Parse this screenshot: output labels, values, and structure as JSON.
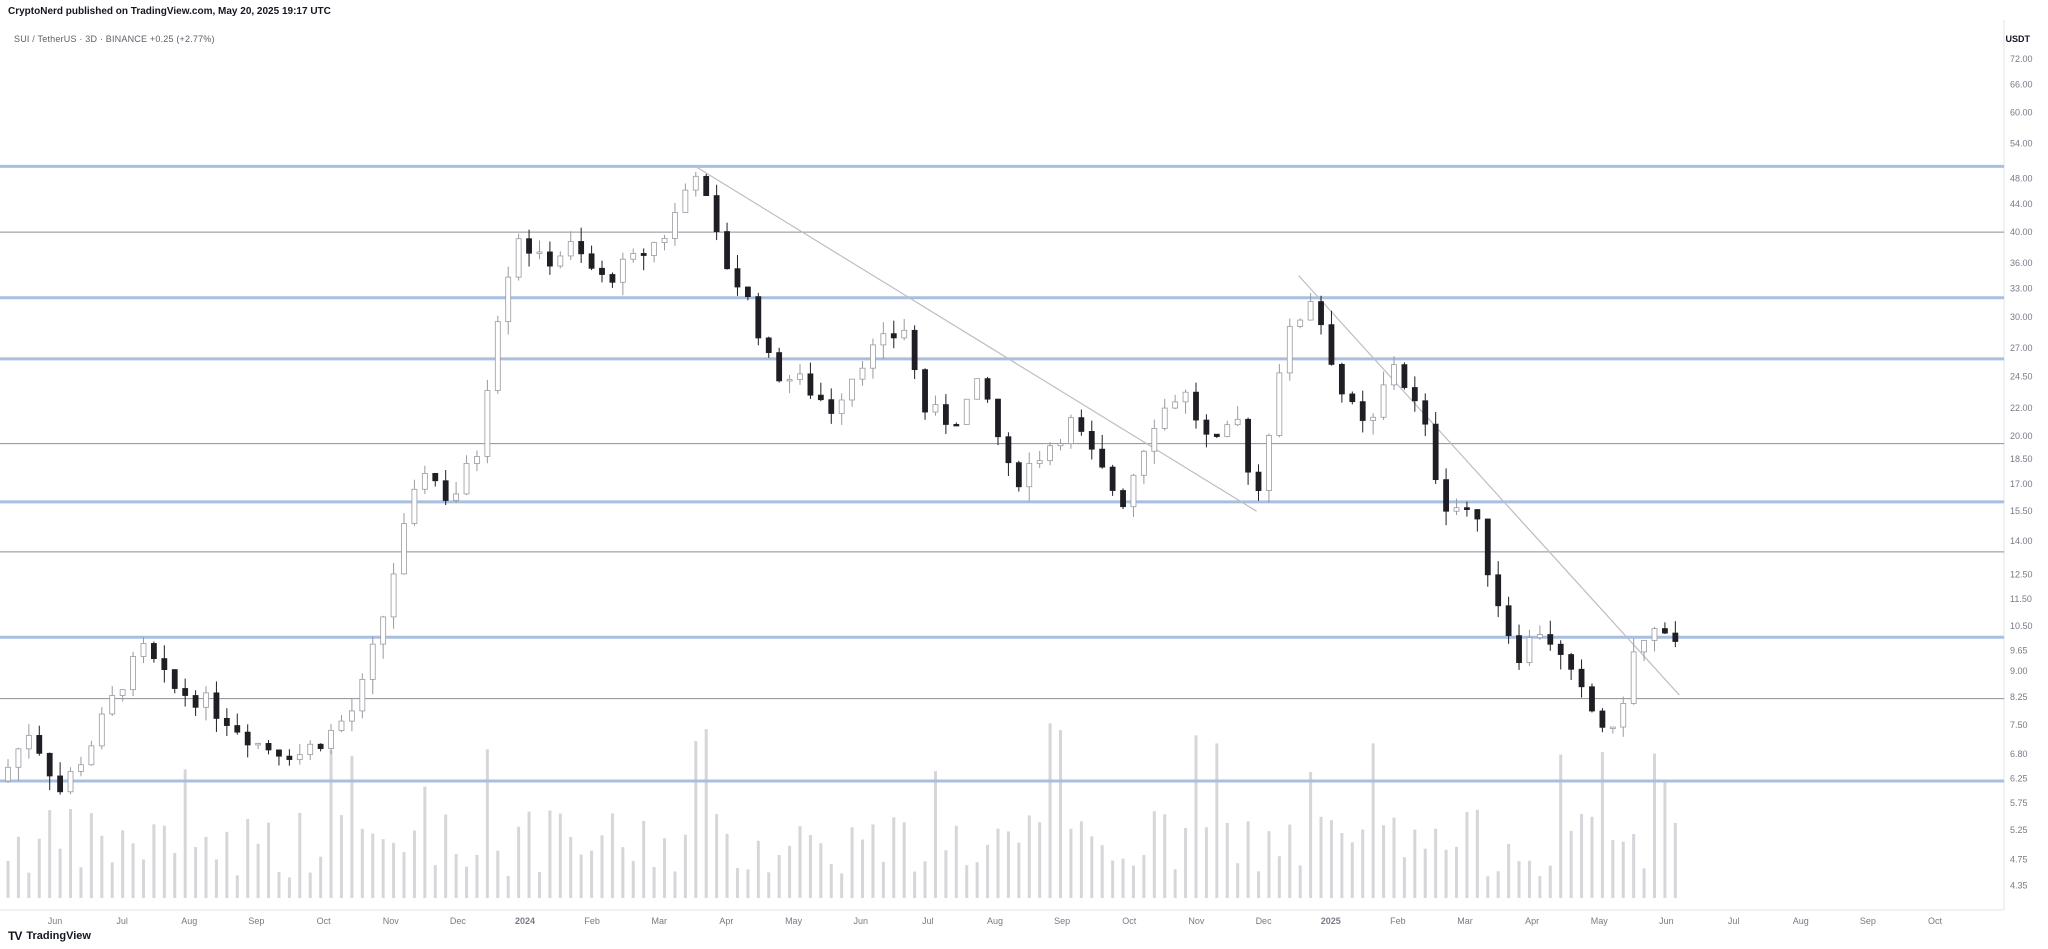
{
  "header": {
    "publisher_line": "CryptoNerd published on TradingView.com, May 20, 2025 19:17 UTC"
  },
  "symbol_line": "SUI / TetherUS · 3D · BINANCE  +0.25 (+2.77%)",
  "currency": "USDT",
  "footer": {
    "brand": "TradingView",
    "logo": "TV"
  },
  "colors": {
    "up": "#cfcfd4",
    "down": "#1e1e24",
    "level": "#a9bfe0",
    "thin": "#8e8e96",
    "volume": "#d6d6da",
    "trend": "#bdbdc3"
  },
  "chart_data": {
    "type": "candlestick",
    "y_scale": "log",
    "ylim": [
      4.0,
      80
    ],
    "y_ticks": [
      72.0,
      66.0,
      60.0,
      54.0,
      48.0,
      44.0,
      40.0,
      36.0,
      33.0,
      30.0,
      27.0,
      24.5,
      22.0,
      20.0,
      18.5,
      17.0,
      15.5,
      14.0,
      12.5,
      11.5,
      10.5,
      9.65,
      9.0,
      8.25,
      7.5,
      6.8,
      6.25,
      5.75,
      5.25,
      4.75,
      4.35
    ],
    "x_ticks": [
      "Jun",
      "Jul",
      "Aug",
      "Sep",
      "Oct",
      "Nov",
      "Dec",
      "2024",
      "Feb",
      "Mar",
      "Apr",
      "May",
      "Jun",
      "Jul",
      "Aug",
      "Sep",
      "Oct",
      "Nov",
      "Dec",
      "2025",
      "Feb",
      "Mar",
      "Apr",
      "May",
      "Jun",
      "Jul",
      "Aug",
      "Sep",
      "Oct"
    ],
    "horizontal_levels": [
      {
        "price": 50.0,
        "style": "thick"
      },
      {
        "price": 40.0,
        "style": "thin"
      },
      {
        "price": 32.0,
        "style": "thick"
      },
      {
        "price": 26.0,
        "style": "thick"
      },
      {
        "price": 19.5,
        "style": "thin"
      },
      {
        "price": 16.0,
        "style": "thick"
      },
      {
        "price": 13.5,
        "style": "thin"
      },
      {
        "price": 10.1,
        "style": "thick"
      },
      {
        "price": 8.2,
        "style": "thin"
      },
      {
        "price": 6.2,
        "style": "thick"
      }
    ],
    "trendlines": [
      {
        "from": [
          0.347,
          50.0
        ],
        "to": [
          0.627,
          15.5
        ]
      },
      {
        "from": [
          0.648,
          34.5
        ],
        "to": [
          0.838,
          8.3
        ]
      }
    ],
    "price_path": [
      [
        0.0,
        6.2
      ],
      [
        0.015,
        7.4
      ],
      [
        0.03,
        6.0
      ],
      [
        0.045,
        7.0
      ],
      [
        0.06,
        8.6
      ],
      [
        0.072,
        9.7
      ],
      [
        0.085,
        8.5
      ],
      [
        0.1,
        8.2
      ],
      [
        0.115,
        7.6
      ],
      [
        0.13,
        7.0
      ],
      [
        0.15,
        6.8
      ],
      [
        0.165,
        7.3
      ],
      [
        0.178,
        8.0
      ],
      [
        0.19,
        10.5
      ],
      [
        0.2,
        14.0
      ],
      [
        0.212,
        18.0
      ],
      [
        0.225,
        16.0
      ],
      [
        0.238,
        19.0
      ],
      [
        0.248,
        30.0
      ],
      [
        0.258,
        40.0
      ],
      [
        0.27,
        36.0
      ],
      [
        0.285,
        38.0
      ],
      [
        0.3,
        34.0
      ],
      [
        0.315,
        36.0
      ],
      [
        0.333,
        40.0
      ],
      [
        0.347,
        50.0
      ],
      [
        0.36,
        37.0
      ],
      [
        0.375,
        31.0
      ],
      [
        0.385,
        25.0
      ],
      [
        0.4,
        24.0
      ],
      [
        0.415,
        22.0
      ],
      [
        0.43,
        26.0
      ],
      [
        0.452,
        29.0
      ],
      [
        0.46,
        22.0
      ],
      [
        0.475,
        21.0
      ],
      [
        0.49,
        24.0
      ],
      [
        0.505,
        17.0
      ],
      [
        0.52,
        19.0
      ],
      [
        0.535,
        21.0
      ],
      [
        0.548,
        18.0
      ],
      [
        0.56,
        16.0
      ],
      [
        0.575,
        21.0
      ],
      [
        0.59,
        23.5
      ],
      [
        0.605,
        19.0
      ],
      [
        0.618,
        21.0
      ],
      [
        0.627,
        16.0
      ],
      [
        0.64,
        27.0
      ],
      [
        0.655,
        32.5
      ],
      [
        0.67,
        23.0
      ],
      [
        0.683,
        20.0
      ],
      [
        0.695,
        26.0
      ],
      [
        0.71,
        21.0
      ],
      [
        0.72,
        16.0
      ],
      [
        0.735,
        15.5
      ],
      [
        0.745,
        12.0
      ],
      [
        0.757,
        9.5
      ],
      [
        0.77,
        10.5
      ],
      [
        0.782,
        9.0
      ],
      [
        0.795,
        7.8
      ],
      [
        0.805,
        7.2
      ],
      [
        0.815,
        9.5
      ],
      [
        0.825,
        10.3
      ],
      [
        0.838,
        9.6
      ]
    ]
  }
}
